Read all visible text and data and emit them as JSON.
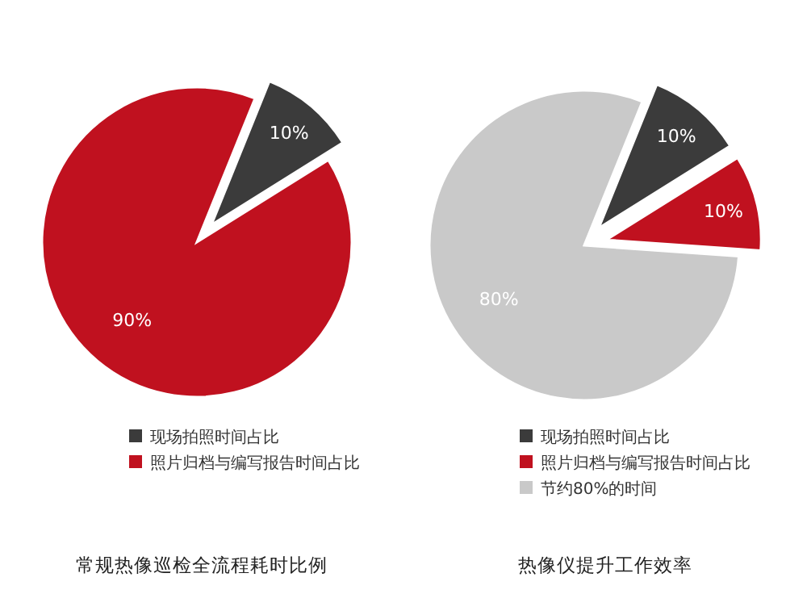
{
  "chart_data": [
    {
      "type": "pie",
      "title": "常规热像巡检全流程耗时比例",
      "categories": [
        "现场拍照时间占比",
        "照片归档与编写报告时间占比"
      ],
      "values": [
        10,
        90
      ],
      "value_labels": [
        "10%",
        "90%"
      ],
      "colors": [
        "#3b3b3b",
        "#c0111f"
      ],
      "legend": "bottom"
    },
    {
      "type": "pie",
      "title": "热像仪提升工作效率",
      "categories": [
        "现场拍照时间占比",
        "照片归档与编写报告时间占比",
        "节约80%的时间"
      ],
      "values": [
        10,
        10,
        80
      ],
      "value_labels": [
        "10%",
        "10%",
        "80%"
      ],
      "colors": [
        "#3b3b3b",
        "#c0111f",
        "#c9c9c9"
      ],
      "legend": "bottom"
    }
  ]
}
